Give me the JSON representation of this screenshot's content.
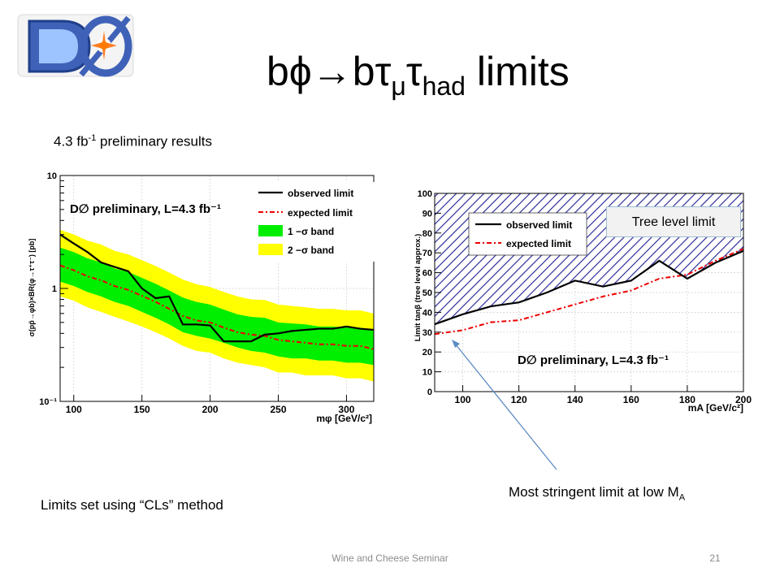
{
  "slide": {
    "title_main": "bϕ→bτ",
    "title_sub1": "μ",
    "title_mid": "τ",
    "title_sub2": "had",
    "title_end": " limits",
    "lumi_pre": "4.3 fb",
    "lumi_sup": "-1",
    "lumi_post": " preliminary results",
    "tree_level_label": "Tree level limit",
    "cls_note": "Limits set using “CLs” method",
    "stringent_pre": "Most stringent limit at low M",
    "stringent_sub": "A",
    "footer": "Wine and Cheese Seminar",
    "page_number": "21"
  },
  "colors": {
    "one_sigma": "#00ee00",
    "two_sigma": "#ffff00",
    "observed": "#000000",
    "expected": "#ee0000",
    "hatch": "#2d2d9a",
    "arrow": "#5b8ac2"
  },
  "chart_data": [
    {
      "type": "line",
      "id": "cross-section-limit",
      "xlabel": "mφ [GeV/c²]",
      "ylabel": "σ(pp̄→φb)×BR(φ→τ⁺τ⁻) [pb]",
      "xlim": [
        90,
        320
      ],
      "ylim": [
        0.1,
        10
      ],
      "y_log": true,
      "x_ticks": [
        100,
        150,
        200,
        250,
        300
      ],
      "y_ticks": [
        {
          "value": 0.1,
          "label": "10⁻¹"
        },
        {
          "value": 1,
          "label": "1"
        },
        {
          "value": 10,
          "label": "10"
        }
      ],
      "annotation": "D∅ preliminary, L=4.3 fb⁻¹",
      "legend_position": "top-right",
      "x": [
        90,
        100,
        110,
        120,
        130,
        140,
        150,
        160,
        170,
        180,
        190,
        200,
        210,
        220,
        230,
        240,
        250,
        260,
        270,
        280,
        290,
        300,
        310,
        320
      ],
      "series": [
        {
          "name": "observed limit",
          "style": "solid",
          "values": [
            3.0,
            2.5,
            2.1,
            1.7,
            1.55,
            1.42,
            1.0,
            0.82,
            0.85,
            0.48,
            0.48,
            0.47,
            0.34,
            0.34,
            0.34,
            0.39,
            0.4,
            0.42,
            0.43,
            0.44,
            0.44,
            0.46,
            0.44,
            0.43
          ]
        },
        {
          "name": "expected limit",
          "style": "dash-dot",
          "values": [
            1.6,
            1.45,
            1.28,
            1.18,
            1.05,
            0.97,
            0.86,
            0.76,
            0.66,
            0.57,
            0.52,
            0.5,
            0.45,
            0.41,
            0.39,
            0.38,
            0.35,
            0.34,
            0.33,
            0.32,
            0.32,
            0.31,
            0.31,
            0.29
          ]
        },
        {
          "name": "1 −σ band",
          "style": "band",
          "lower": [
            1.15,
            1.05,
            0.93,
            0.85,
            0.76,
            0.7,
            0.62,
            0.55,
            0.48,
            0.41,
            0.38,
            0.36,
            0.33,
            0.3,
            0.28,
            0.27,
            0.25,
            0.24,
            0.24,
            0.23,
            0.23,
            0.22,
            0.22,
            0.21
          ],
          "upper": [
            2.3,
            2.1,
            1.85,
            1.7,
            1.5,
            1.4,
            1.24,
            1.1,
            0.96,
            0.83,
            0.76,
            0.72,
            0.65,
            0.59,
            0.56,
            0.55,
            0.5,
            0.49,
            0.48,
            0.46,
            0.46,
            0.45,
            0.45,
            0.42
          ]
        },
        {
          "name": "2 −σ band",
          "style": "band",
          "lower": [
            0.85,
            0.78,
            0.68,
            0.62,
            0.56,
            0.51,
            0.46,
            0.41,
            0.36,
            0.31,
            0.28,
            0.27,
            0.24,
            0.22,
            0.21,
            0.2,
            0.18,
            0.18,
            0.17,
            0.17,
            0.17,
            0.16,
            0.16,
            0.15
          ],
          "upper": [
            3.3,
            3.0,
            2.65,
            2.45,
            2.15,
            2.0,
            1.78,
            1.58,
            1.38,
            1.2,
            1.09,
            1.03,
            0.93,
            0.85,
            0.8,
            0.79,
            0.72,
            0.7,
            0.68,
            0.66,
            0.66,
            0.64,
            0.64,
            0.6
          ]
        }
      ]
    },
    {
      "type": "line",
      "id": "tanbeta-limit",
      "xlabel": "mA [GeV/c²]",
      "ylabel": "Limit tanβ (tree level approx.)",
      "xlim": [
        90,
        200
      ],
      "ylim": [
        0,
        100
      ],
      "x_ticks": [
        100,
        120,
        140,
        160,
        180,
        200
      ],
      "y_ticks": [
        0,
        10,
        20,
        30,
        40,
        50,
        60,
        70,
        80,
        90,
        100
      ],
      "annotation": "D∅ preliminary, L=4.3 fb⁻¹",
      "legend_position": "top-left",
      "hatched_region": "excluded above observed limit",
      "x": [
        90,
        100,
        110,
        120,
        130,
        140,
        150,
        160,
        170,
        180,
        190,
        200
      ],
      "series": [
        {
          "name": "observed limit",
          "style": "solid",
          "values": [
            34,
            39,
            43,
            45,
            50,
            56,
            53,
            56,
            66,
            57,
            65,
            71
          ]
        },
        {
          "name": "expected limit",
          "style": "dash-dot",
          "values": [
            29,
            31,
            35,
            36,
            40,
            44,
            48,
            51,
            57,
            59,
            66,
            72
          ]
        }
      ]
    }
  ]
}
